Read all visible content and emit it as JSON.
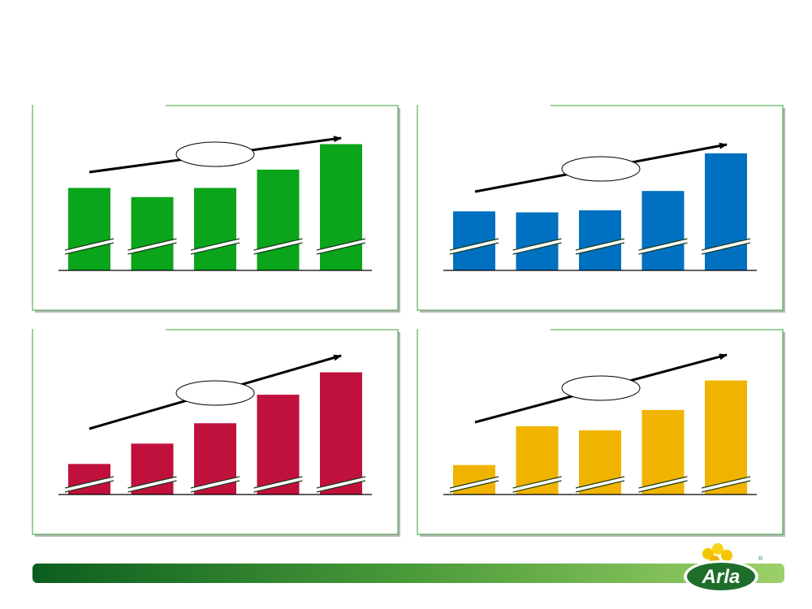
{
  "chart_data": [
    {
      "type": "bar",
      "categories": [
        null,
        null,
        null,
        null,
        null
      ],
      "values": [
        81,
        72,
        81,
        99,
        124
      ],
      "color": "#0aa51a",
      "ylim": [
        0,
        130
      ]
    },
    {
      "type": "bar",
      "categories": [
        null,
        null,
        null,
        null,
        null
      ],
      "values": [
        58,
        57,
        59,
        78,
        115
      ],
      "color": "#0070c0",
      "ylim": [
        0,
        130
      ]
    },
    {
      "type": "bar",
      "categories": [
        null,
        null,
        null,
        null,
        null
      ],
      "values": [
        30,
        50,
        70,
        98,
        120
      ],
      "color": "#c0103c",
      "ylim": [
        0,
        130
      ]
    },
    {
      "type": "bar",
      "categories": [
        null,
        null,
        null,
        null,
        null
      ],
      "values": [
        29,
        67,
        63,
        83,
        112
      ],
      "color": "#f0b400",
      "ylim": [
        0,
        130
      ]
    }
  ],
  "logo": {
    "text": "Arla",
    "mark": "®"
  }
}
